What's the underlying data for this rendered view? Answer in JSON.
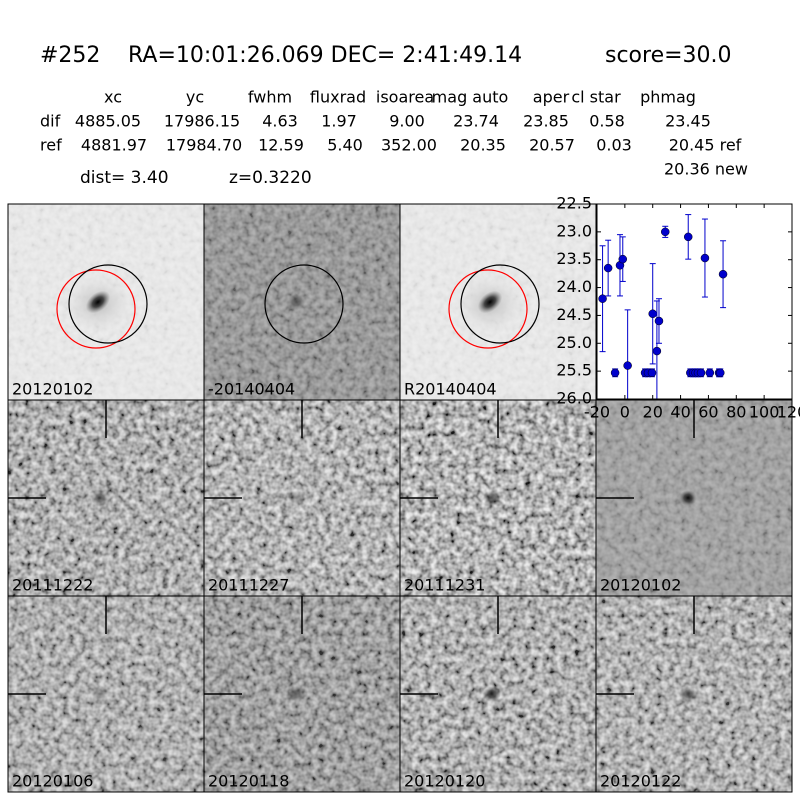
{
  "header": {
    "id": "#252",
    "coords": "RA=10:01:26.069 DEC= 2:41:49.14",
    "score": "score=30.0"
  },
  "table": {
    "columns": [
      "xc",
      "yc",
      "fwhm",
      "fluxrad",
      "isoarea",
      "mag auto",
      "aper",
      "cl star",
      "phmag"
    ],
    "rows": [
      [
        "dif",
        "4885.05",
        "17986.15",
        "4.63",
        "1.97",
        "9.00",
        "23.74",
        "23.85",
        "0.58",
        "23.45"
      ],
      [
        "ref",
        "4881.97",
        "17984.70",
        "12.59",
        "5.40",
        "352.00",
        "20.35",
        "20.57",
        "0.03",
        "20.45 ref"
      ]
    ],
    "note": "20.36 new"
  },
  "dist": "dist=  3.40",
  "z": "z=0.3220",
  "stamps": [
    "20120102",
    "-20140404",
    "R20140404",
    "20111222",
    "20111227",
    "20111231",
    "20120102",
    "20120106",
    "20120118",
    "20120120",
    "20120122"
  ],
  "chart_data": {
    "type": "scatter",
    "x": [
      -16,
      -12,
      -7,
      -3.5,
      -1.5,
      2,
      14.5,
      16.6,
      19.5,
      20,
      23,
      24.5,
      29,
      45.5,
      47,
      49,
      50.8,
      52.5,
      54.7,
      57.5,
      61,
      67.6,
      68.5,
      70.5
    ],
    "series": [
      {
        "color": "#0000cc",
        "values": [
          24.2,
          23.65,
          25.53,
          23.6,
          23.49,
          25.4,
          25.53,
          25.53,
          25.53,
          24.47,
          25.14,
          24.6,
          23.0,
          23.09,
          25.53,
          25.53,
          25.53,
          25.53,
          25.53,
          23.47,
          25.53,
          25.53,
          25.53,
          23.76
        ],
        "errors": [
          0.95,
          0.5,
          0.07,
          0.55,
          0.4,
          1.0,
          0.07,
          0.07,
          0.07,
          0.9,
          0.9,
          0.4,
          0.1,
          0.4,
          0.07,
          0.07,
          0.07,
          0.07,
          0.07,
          0.7,
          0.07,
          0.07,
          0.07,
          0.6
        ]
      }
    ],
    "xlim": [
      -20,
      120
    ],
    "xticks": [
      -20,
      0,
      20,
      40,
      60,
      80,
      100,
      120
    ],
    "ylim": [
      22.5,
      26.0
    ],
    "y_inverted": true,
    "yticks": [
      22.5,
      {
        "value": 23,
        "label": "23.0"
      },
      23.5,
      {
        "value": 24,
        "label": "24.0"
      },
      24.5,
      {
        "value": 25,
        "label": "25.0"
      },
      25.5,
      {
        "value": 26,
        "label": "26.0"
      }
    ]
  }
}
